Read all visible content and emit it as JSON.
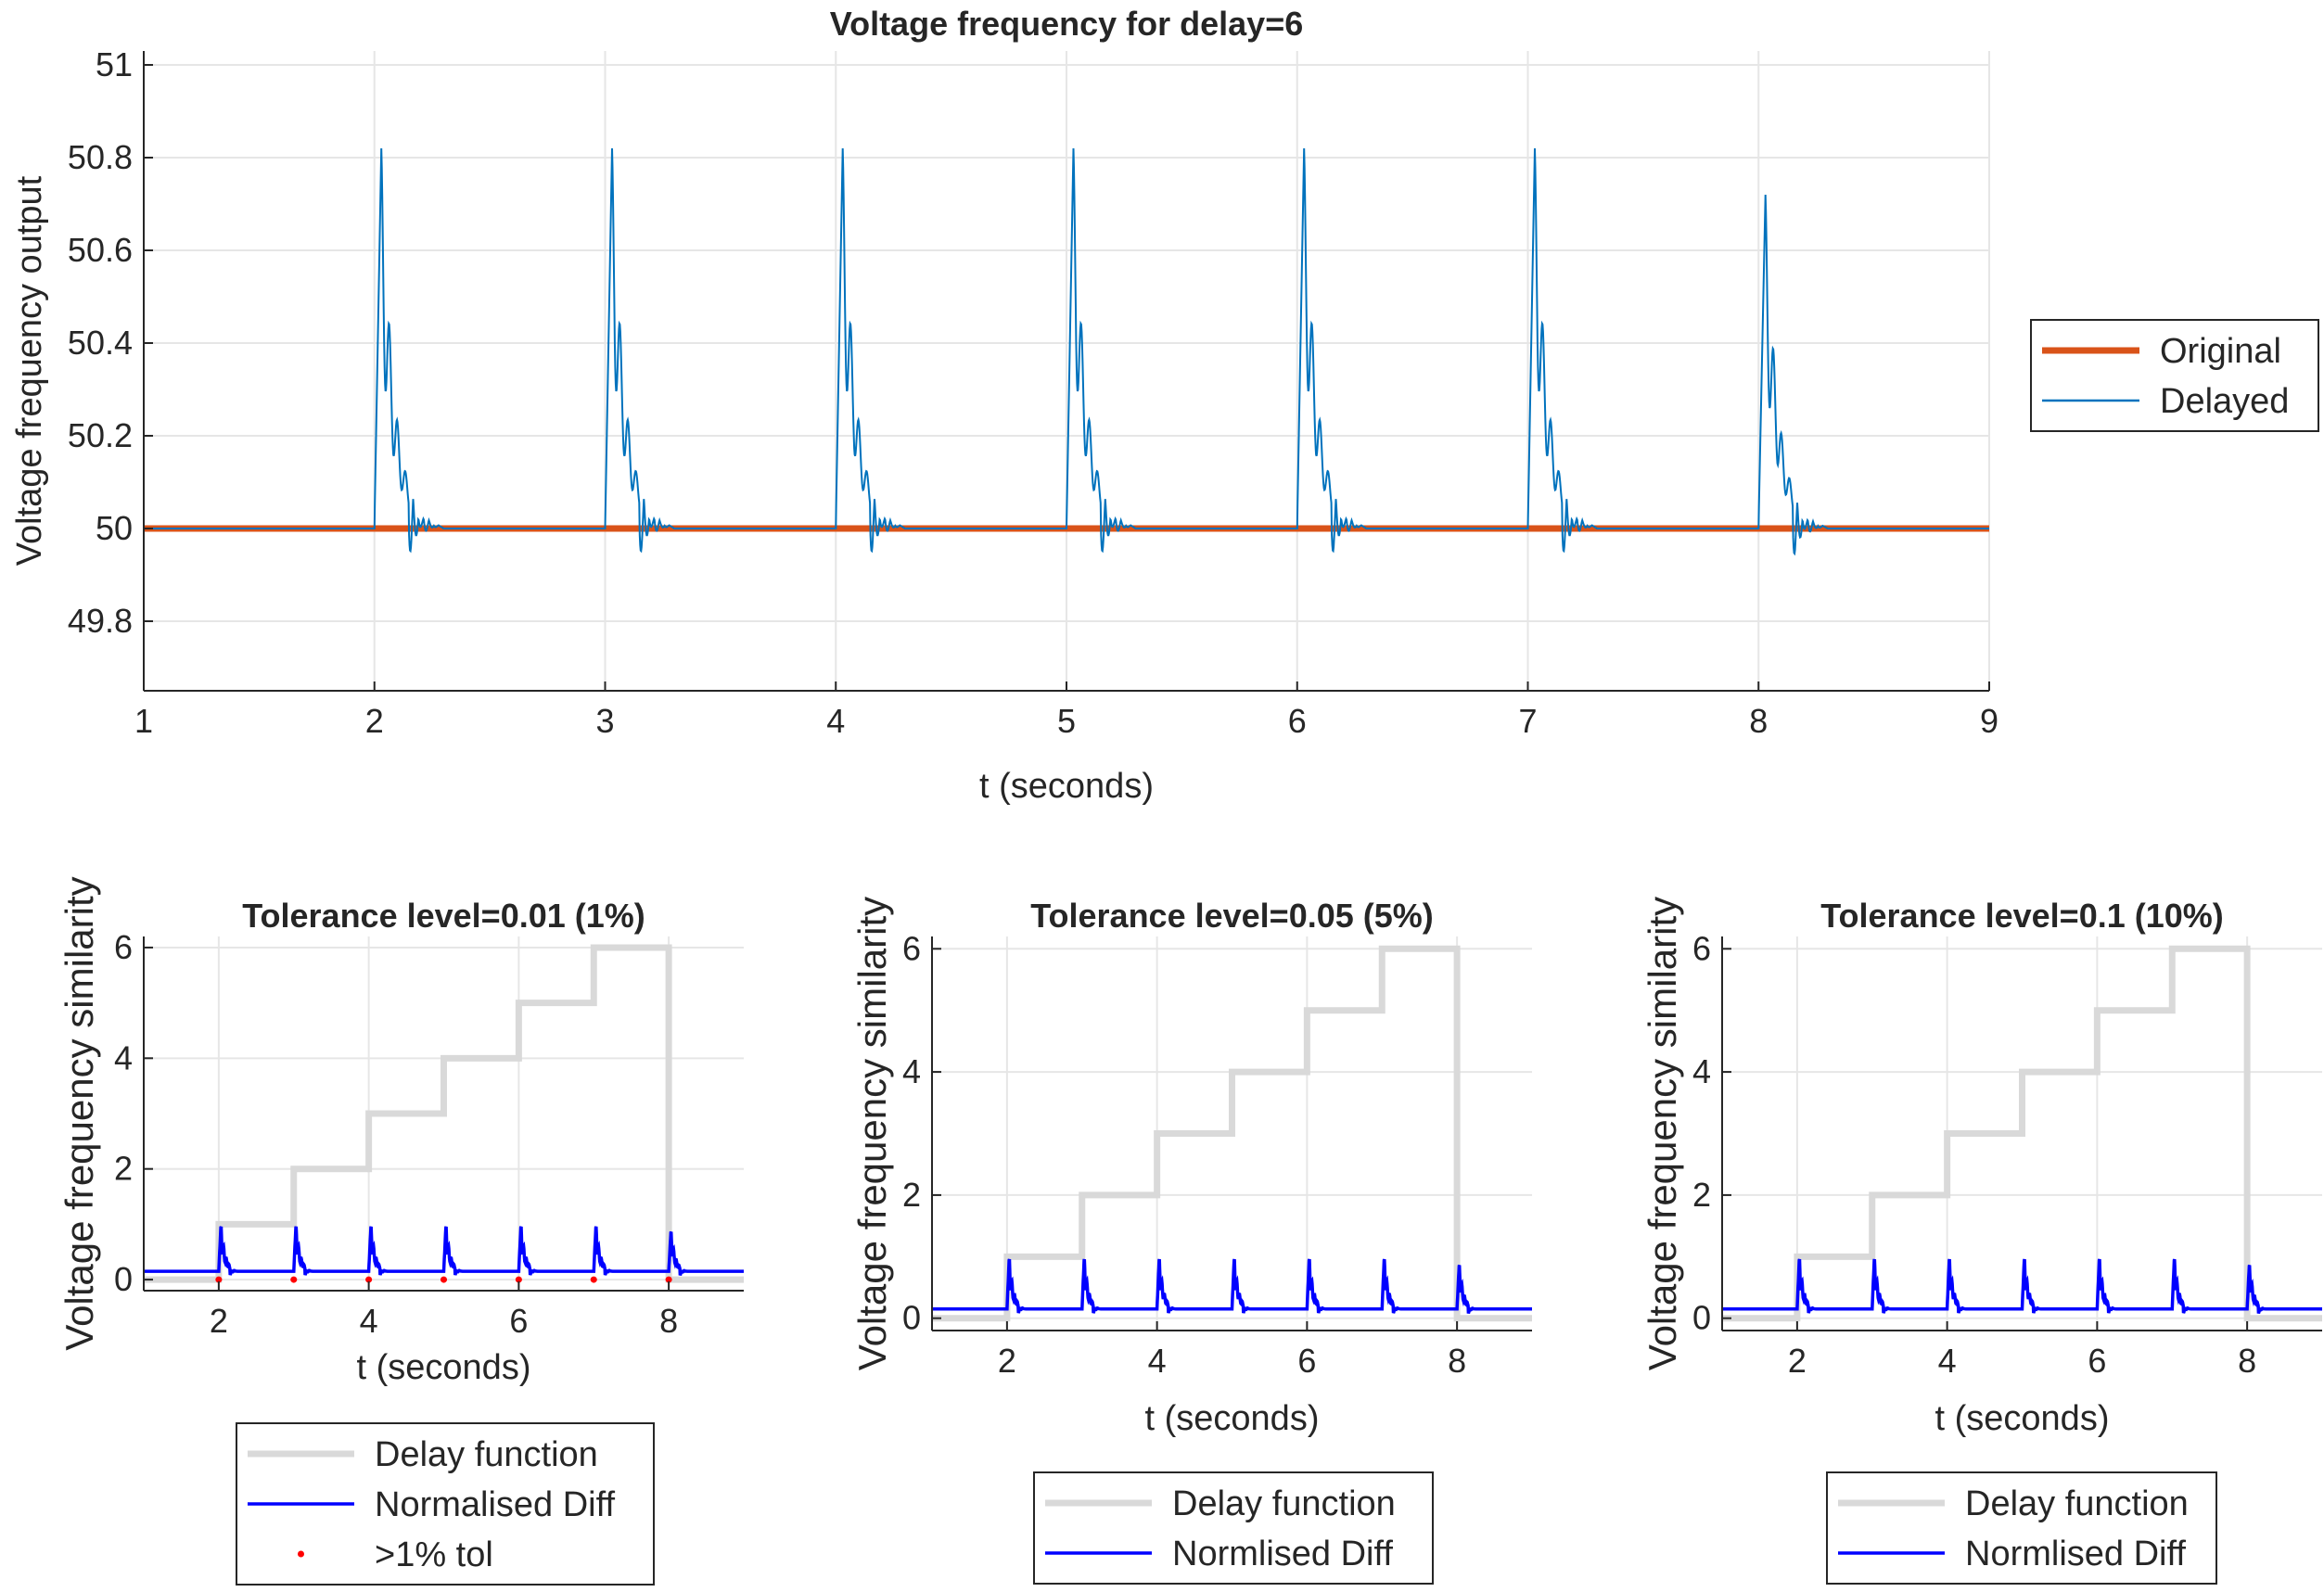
{
  "chart_data": [
    {
      "type": "line",
      "title": "Voltage frequency for delay=6",
      "xlabel": "t (seconds)",
      "ylabel": "Voltage frequency output",
      "xlim": [
        1,
        9
      ],
      "ylim": [
        49.65,
        51.03
      ],
      "xticks": [
        "1",
        "2",
        "3",
        "4",
        "5",
        "6",
        "7",
        "8",
        "9"
      ],
      "yticks": [
        "49.8",
        "50",
        "50.2",
        "50.4",
        "50.6",
        "50.8",
        "51"
      ],
      "grid": true,
      "legend_position": "right",
      "series": [
        {
          "name": "Original",
          "color": "#D95319",
          "x": [
            1,
            9
          ],
          "y": [
            50,
            50
          ]
        },
        {
          "name": "Delayed",
          "color": "#0072BD",
          "pulse_times": [
            2,
            3,
            4,
            5,
            6,
            7,
            8
          ],
          "pulse_peaks": [
            50.82,
            50.82,
            50.82,
            50.82,
            50.82,
            50.82,
            50.72
          ],
          "baseline": 50,
          "min": 49.89
        }
      ]
    },
    {
      "type": "line",
      "title": "Tolerance level=0.01 (1%)",
      "xlabel": "t (seconds)",
      "ylabel": "Voltage frequency similarity",
      "xlim": [
        1,
        9
      ],
      "ylim": [
        -0.2,
        6.2
      ],
      "xticks": [
        "2",
        "4",
        "6",
        "8"
      ],
      "yticks": [
        "0",
        "2",
        "4",
        "6"
      ],
      "grid": true,
      "legend_position": "bottom",
      "series": [
        {
          "name": "Delay function",
          "color": "#D9D9D9",
          "steps": [
            [
              1,
              0
            ],
            [
              2,
              1
            ],
            [
              3,
              2
            ],
            [
              4,
              3
            ],
            [
              5,
              4
            ],
            [
              6,
              5
            ],
            [
              7,
              6
            ],
            [
              8,
              0
            ]
          ]
        },
        {
          "name": "Normalised Diff",
          "color": "#0000FF",
          "baseline": 0.15,
          "pulse_times": [
            2,
            3,
            4,
            5,
            6,
            7,
            8
          ],
          "pulse_peaks": [
            1,
            1,
            1,
            1,
            1,
            1,
            0.9
          ]
        },
        {
          "name": ">1% tol",
          "color": "#FF0000",
          "x": [
            2,
            3,
            4,
            5,
            6,
            7,
            8
          ],
          "y": [
            0,
            0,
            0,
            0,
            0,
            0,
            0
          ]
        }
      ]
    },
    {
      "type": "line",
      "title": "Tolerance level=0.05 (5%)",
      "xlabel": "t (seconds)",
      "ylabel": "Voltage frequency similarity",
      "xlim": [
        1,
        9
      ],
      "ylim": [
        -0.2,
        6.2
      ],
      "xticks": [
        "2",
        "4",
        "6",
        "8"
      ],
      "yticks": [
        "0",
        "2",
        "4",
        "6"
      ],
      "grid": true,
      "legend_position": "bottom",
      "series": [
        {
          "name": "Delay function",
          "color": "#D9D9D9",
          "steps": [
            [
              1,
              0
            ],
            [
              2,
              1
            ],
            [
              3,
              2
            ],
            [
              4,
              3
            ],
            [
              5,
              4
            ],
            [
              6,
              5
            ],
            [
              7,
              6
            ],
            [
              8,
              0
            ]
          ]
        },
        {
          "name": "Normlised Diff",
          "color": "#0000FF",
          "baseline": 0.15,
          "pulse_times": [
            2,
            3,
            4,
            5,
            6,
            7,
            8
          ],
          "pulse_peaks": [
            1,
            1,
            1,
            1,
            1,
            1,
            0.9
          ]
        }
      ]
    },
    {
      "type": "line",
      "title": "Tolerance level=0.1 (10%)",
      "xlabel": "t (seconds)",
      "ylabel": "Voltage frequency similarity",
      "xlim": [
        1,
        9
      ],
      "ylim": [
        -0.2,
        6.2
      ],
      "xticks": [
        "2",
        "4",
        "6",
        "8"
      ],
      "yticks": [
        "0",
        "2",
        "4",
        "6"
      ],
      "grid": true,
      "legend_position": "bottom",
      "series": [
        {
          "name": "Delay function",
          "color": "#D9D9D9",
          "steps": [
            [
              1,
              0
            ],
            [
              2,
              1
            ],
            [
              3,
              2
            ],
            [
              4,
              3
            ],
            [
              5,
              4
            ],
            [
              6,
              5
            ],
            [
              7,
              6
            ],
            [
              8,
              0
            ]
          ]
        },
        {
          "name": "Normlised Diff",
          "color": "#0000FF",
          "baseline": 0.15,
          "pulse_times": [
            2,
            3,
            4,
            5,
            6,
            7,
            8
          ],
          "pulse_peaks": [
            1,
            1,
            1,
            1,
            1,
            1,
            0.9
          ]
        }
      ]
    }
  ]
}
